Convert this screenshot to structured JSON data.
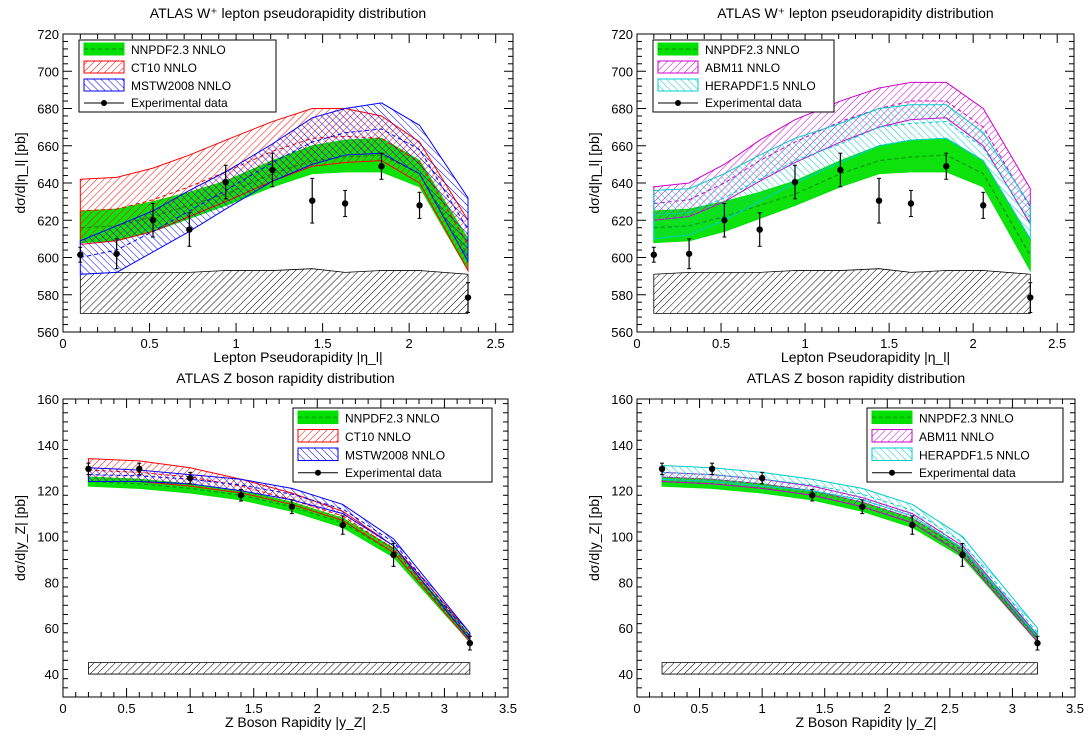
{
  "chart_data": [
    {
      "type": "area",
      "title": "ATLAS W⁺ lepton pseudorapidity distribution",
      "xlabel": "Lepton Pseudorapidity |η_l|",
      "ylabel": "dσ/d|η_l| [pb]",
      "xlim": [
        0,
        2.6
      ],
      "ylim": [
        560,
        720
      ],
      "xticks": [
        "0",
        "0.5",
        "1",
        "1.5",
        "2",
        "2.5"
      ],
      "yticks": [
        "560",
        "580",
        "600",
        "620",
        "640",
        "660",
        "680",
        "700",
        "720"
      ],
      "legend_position": "top-left",
      "x": [
        0.1,
        0.31,
        0.52,
        0.73,
        0.94,
        1.21,
        1.44,
        1.63,
        1.84,
        2.06,
        2.34
      ],
      "series": [
        {
          "name": "NNPDF2.3 NNLO",
          "color": "#00e000",
          "style": "solid",
          "low": [
            608,
            609,
            614,
            621,
            628,
            638,
            645,
            646,
            646,
            638,
            593
          ],
          "high": [
            625,
            626,
            630,
            635,
            641,
            652,
            660,
            663,
            664,
            652,
            610
          ],
          "central": [
            616,
            617,
            622,
            628,
            634,
            645,
            652,
            654,
            655,
            645,
            601
          ]
        },
        {
          "name": "CT10 NNLO",
          "color": "#ff0000",
          "style": "hatch",
          "low": [
            607,
            609,
            614,
            622,
            630,
            641,
            649,
            651,
            652,
            640,
            593
          ],
          "high": [
            642,
            643,
            648,
            655,
            663,
            673,
            680,
            680,
            676,
            662,
            620
          ],
          "central": [
            625,
            626,
            631,
            638,
            646,
            657,
            664,
            665,
            664,
            651,
            607
          ]
        },
        {
          "name": "MSTW2008 NNLO",
          "color": "#0000ff",
          "style": "hatch",
          "low": [
            591,
            592,
            603,
            614,
            626,
            641,
            650,
            655,
            656,
            645,
            598
          ],
          "high": [
            609,
            617,
            625,
            636,
            646,
            661,
            675,
            680,
            683,
            671,
            632
          ],
          "central": [
            600,
            604,
            614,
            625,
            636,
            651,
            662,
            667,
            669,
            658,
            615
          ]
        }
      ],
      "data": {
        "name": "Experimental data",
        "y": [
          601.5,
          602,
          620,
          615,
          640.5,
          647,
          630.5,
          629,
          649,
          628,
          578.5
        ],
        "err": [
          4,
          8,
          9,
          9,
          9,
          9,
          12,
          7,
          7,
          7,
          8
        ]
      },
      "systematic_band": {
        "low": 570,
        "high": [
          591,
          592,
          592,
          592,
          593,
          593,
          594,
          592,
          593,
          593,
          591
        ]
      }
    },
    {
      "type": "area",
      "title": "ATLAS W⁺ lepton pseudorapidity distribution",
      "xlabel": "Lepton Pseudorapidity |η_l|",
      "ylabel": "dσ/d|η_l| [pb]",
      "xlim": [
        0,
        2.6
      ],
      "ylim": [
        560,
        720
      ],
      "xticks": [
        "0",
        "0.5",
        "1",
        "1.5",
        "2",
        "2.5"
      ],
      "yticks": [
        "560",
        "580",
        "600",
        "620",
        "640",
        "660",
        "680",
        "700",
        "720"
      ],
      "legend_position": "top-left",
      "x": [
        0.1,
        0.31,
        0.52,
        0.73,
        0.94,
        1.21,
        1.44,
        1.63,
        1.84,
        2.06,
        2.34
      ],
      "series": [
        {
          "name": "NNPDF2.3 NNLO",
          "color": "#00e000",
          "style": "solid",
          "low": [
            608,
            609,
            614,
            621,
            628,
            638,
            645,
            646,
            646,
            638,
            593
          ],
          "high": [
            625,
            626,
            630,
            635,
            641,
            652,
            660,
            663,
            664,
            652,
            610
          ],
          "central": [
            616,
            617,
            622,
            628,
            634,
            645,
            652,
            654,
            655,
            645,
            601
          ]
        },
        {
          "name": "ABM11 NNLO",
          "color": "#cc00cc",
          "style": "hatch",
          "low": [
            620,
            622,
            630,
            641,
            651,
            662,
            670,
            674,
            675,
            660,
            618
          ],
          "high": [
            638,
            640,
            650,
            663,
            674,
            684,
            691,
            694,
            694,
            680,
            637
          ],
          "central": [
            629,
            631,
            640,
            652,
            662,
            673,
            680,
            684,
            684,
            670,
            627
          ]
        },
        {
          "name": "HERAPDF1.5 NNLO",
          "color": "#00cccc",
          "style": "hatch",
          "low": [
            610,
            612,
            620,
            630,
            640,
            651,
            660,
            663,
            664,
            652,
            610
          ],
          "high": [
            636,
            637,
            645,
            655,
            664,
            672,
            680,
            682,
            682,
            667,
            628
          ],
          "central": [
            623,
            624,
            632,
            642,
            652,
            661,
            670,
            672,
            673,
            659,
            619
          ]
        }
      ],
      "data": {
        "name": "Experimental data",
        "y": [
          601.5,
          602,
          620,
          615,
          640.5,
          647,
          630.5,
          629,
          649,
          628,
          578.5
        ],
        "err": [
          4,
          8,
          9,
          9,
          9,
          9,
          12,
          7,
          7,
          7,
          8
        ]
      },
      "systematic_band": {
        "low": 570,
        "high": [
          591,
          592,
          592,
          592,
          593,
          593,
          594,
          592,
          593,
          593,
          591
        ]
      }
    },
    {
      "type": "area",
      "title": "ATLAS Z boson rapidity distribution",
      "xlabel": "Z Boson Rapidity |y_Z|",
      "ylabel": "dσ/d|y_Z| [pb]",
      "xlim": [
        0,
        3.5
      ],
      "ylim": [
        30,
        160
      ],
      "xticks": [
        "0",
        "0.5",
        "1",
        "1.5",
        "2",
        "2.5",
        "3",
        "3.5"
      ],
      "yticks": [
        "40",
        "60",
        "80",
        "100",
        "120",
        "140",
        "160"
      ],
      "legend_position": "top-right",
      "x": [
        0.2,
        0.6,
        1.0,
        1.4,
        1.8,
        2.2,
        2.6,
        3.2
      ],
      "series": [
        {
          "name": "NNPDF2.3 NNLO",
          "color": "#00e000",
          "style": "solid",
          "low": [
            122,
            121,
            119,
            116,
            111,
            104,
            91,
            54
          ],
          "high": [
            126,
            125,
            123,
            120,
            115,
            108,
            95,
            57
          ],
          "central": [
            124,
            123,
            121,
            118,
            113,
            106,
            93,
            55.5
          ]
        },
        {
          "name": "CT10 NNLO",
          "color": "#ff0000",
          "style": "hatch",
          "low": [
            124,
            124,
            122,
            119,
            114,
            107,
            93,
            54
          ],
          "high": [
            134,
            133,
            130,
            125,
            119,
            111,
            96,
            58
          ],
          "central": [
            129,
            128,
            126,
            122,
            116,
            109,
            94.5,
            56
          ]
        },
        {
          "name": "MSTW2008 NNLO",
          "color": "#0000ff",
          "style": "hatch",
          "low": [
            124,
            124,
            123,
            120,
            116,
            110,
            96,
            55
          ],
          "high": [
            130,
            129,
            127,
            125,
            121,
            114,
            99,
            58
          ],
          "central": [
            127,
            126.5,
            125,
            122.5,
            118.5,
            112,
            97.5,
            56.5
          ]
        }
      ],
      "data": {
        "name": "Experimental data",
        "y": [
          129.5,
          129.5,
          125.5,
          118,
          113,
          105,
          92,
          53.5
        ],
        "err": [
          2.5,
          2.5,
          2.5,
          2.5,
          3,
          4,
          5,
          3
        ]
      },
      "systematic_band": {
        "low": 40,
        "high": [
          45,
          45,
          45,
          45,
          45,
          45,
          45,
          45
        ]
      }
    },
    {
      "type": "area",
      "title": "ATLAS Z boson rapidity distribution",
      "xlabel": "Z Boson Rapidity |y_Z|",
      "ylabel": "dσ/d|y_Z| [pb]",
      "xlim": [
        0,
        3.5
      ],
      "ylim": [
        30,
        160
      ],
      "xticks": [
        "0",
        "0.5",
        "1",
        "1.5",
        "2",
        "2.5",
        "3",
        "3.5"
      ],
      "yticks": [
        "40",
        "60",
        "80",
        "100",
        "120",
        "140",
        "160"
      ],
      "legend_position": "top-right",
      "x": [
        0.2,
        0.6,
        1.0,
        1.4,
        1.8,
        2.2,
        2.6,
        3.2
      ],
      "series": [
        {
          "name": "NNPDF2.3 NNLO",
          "color": "#00e000",
          "style": "solid",
          "low": [
            122,
            121,
            119,
            116,
            111,
            104,
            91,
            54
          ],
          "high": [
            126,
            125,
            123,
            120,
            115,
            108,
            95,
            57
          ],
          "central": [
            124,
            123,
            121,
            118,
            113,
            106,
            93,
            55.5
          ]
        },
        {
          "name": "ABM11 NNLO",
          "color": "#cc00cc",
          "style": "hatch",
          "low": [
            124,
            123,
            121,
            118,
            113,
            106,
            92,
            54
          ],
          "high": [
            128,
            127,
            125,
            122,
            117,
            110,
            96,
            57
          ],
          "central": [
            126,
            125,
            123,
            120,
            115,
            108,
            94,
            55.5
          ]
        },
        {
          "name": "HERAPDF1.5 NNLO",
          "color": "#00cccc",
          "style": "hatch",
          "low": [
            125,
            124,
            122,
            120,
            116,
            109,
            95,
            56
          ],
          "high": [
            131,
            130,
            128,
            125,
            121,
            114,
            100,
            60
          ],
          "central": [
            128,
            127,
            125,
            122.5,
            118.5,
            111.5,
            97.5,
            58
          ]
        }
      ],
      "data": {
        "name": "Experimental data",
        "y": [
          129.5,
          129.5,
          125.5,
          118,
          113,
          105,
          92,
          53.5
        ],
        "err": [
          2.5,
          2.5,
          2.5,
          2.5,
          3,
          4,
          5,
          3
        ]
      },
      "systematic_band": {
        "low": 40,
        "high": [
          45,
          45,
          45,
          45,
          45,
          45,
          45,
          45
        ]
      }
    }
  ]
}
